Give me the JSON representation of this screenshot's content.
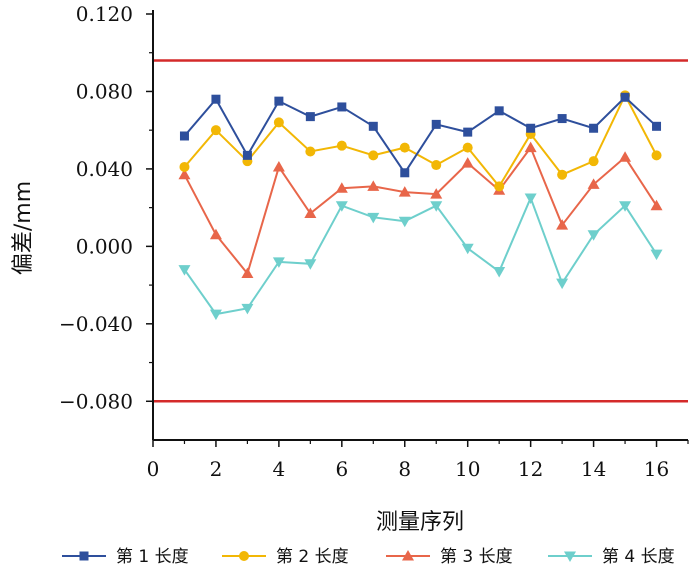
{
  "chart_data": {
    "type": "line",
    "xlabel": "测量序列",
    "ylabel": "偏差/mm",
    "xlim": [
      0,
      17
    ],
    "ylim": [
      -0.1,
      0.12
    ],
    "x_ticks": [
      "0",
      "2",
      "4",
      "6",
      "8",
      "10",
      "12",
      "14",
      "16"
    ],
    "y_ticks": [
      "0.120",
      "0.080",
      "0.040",
      "0.000",
      "−0.040",
      "−0.080"
    ],
    "reference_lines": [
      {
        "y": 0.096,
        "color": "#d42a2a"
      },
      {
        "y": -0.08,
        "color": "#d42a2a"
      }
    ],
    "x": [
      1,
      2,
      3,
      4,
      5,
      6,
      7,
      8,
      9,
      10,
      11,
      12,
      13,
      14,
      15,
      16
    ],
    "series": [
      {
        "name": "第 1 长度",
        "color": "#2e4f9c",
        "marker": "square",
        "values": [
          0.057,
          0.076,
          0.047,
          0.075,
          0.067,
          0.072,
          0.062,
          0.038,
          0.063,
          0.059,
          0.07,
          0.061,
          0.066,
          0.061,
          0.077,
          0.062
        ]
      },
      {
        "name": "第 2 长度",
        "color": "#f2b705",
        "marker": "circle",
        "values": [
          0.041,
          0.06,
          0.044,
          0.064,
          0.049,
          0.052,
          0.047,
          0.051,
          0.042,
          0.051,
          0.031,
          0.058,
          0.037,
          0.044,
          0.078,
          0.047
        ]
      },
      {
        "name": "第 3 长度",
        "color": "#e8664a",
        "marker": "triangle-up",
        "values": [
          0.037,
          0.006,
          -0.014,
          0.041,
          0.017,
          0.03,
          0.031,
          0.028,
          0.027,
          0.043,
          0.029,
          0.051,
          0.011,
          0.032,
          0.046,
          0.021
        ]
      },
      {
        "name": "第 4 长度",
        "color": "#6ecfcc",
        "marker": "triangle-down",
        "values": [
          -0.012,
          -0.035,
          -0.032,
          -0.008,
          -0.009,
          0.021,
          0.015,
          0.013,
          0.021,
          -0.001,
          -0.013,
          0.025,
          -0.019,
          0.006,
          0.021,
          -0.004
        ]
      }
    ],
    "grid": false,
    "legend_position": "bottom"
  }
}
